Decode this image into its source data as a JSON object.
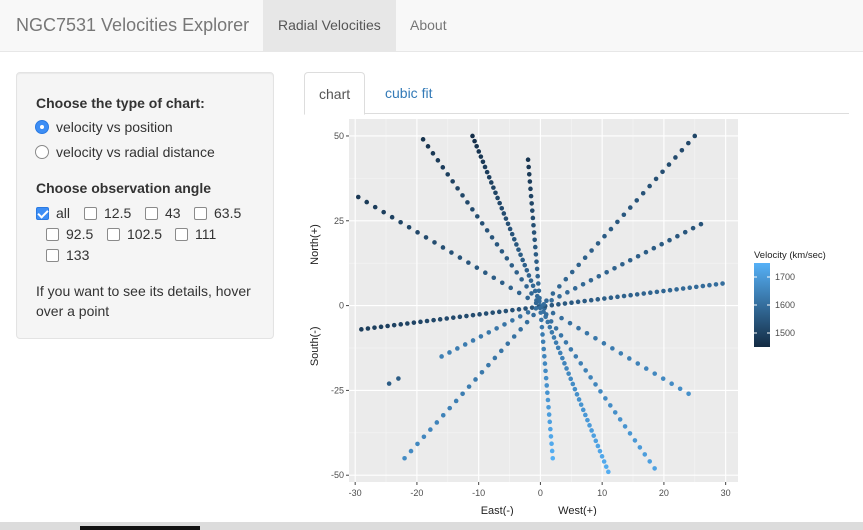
{
  "app": {
    "title": "NGC7531 Velocities Explorer"
  },
  "nav": {
    "items": [
      {
        "label": "Radial Velocities",
        "active": true
      },
      {
        "label": "About",
        "active": false
      }
    ]
  },
  "sidebar": {
    "chart_type_label": "Choose the type of chart:",
    "chart_type_options": [
      {
        "label": "velocity vs position",
        "selected": true
      },
      {
        "label": "velocity vs radial distance",
        "selected": false
      }
    ],
    "angle_label": "Choose observation angle",
    "angle_options": [
      {
        "label": "all",
        "checked": true
      },
      {
        "label": "12.5",
        "checked": false
      },
      {
        "label": "43",
        "checked": false
      },
      {
        "label": "63.5",
        "checked": false
      },
      {
        "label": "92.5",
        "checked": false
      },
      {
        "label": "102.5",
        "checked": false
      },
      {
        "label": "111",
        "checked": false
      },
      {
        "label": "133",
        "checked": false
      }
    ],
    "help_text": "If you want to see its details, hover over a point"
  },
  "tabs": [
    {
      "label": "chart",
      "active": true
    },
    {
      "label": "cubic fit",
      "active": false
    }
  ],
  "chart_data": {
    "type": "scatter",
    "title": "",
    "xlabel_left": "East(-)",
    "xlabel_right": "West(+)",
    "ylabel_top": "North(+)",
    "ylabel_bottom": "South(-)",
    "xlim": [
      -31,
      32
    ],
    "ylim": [
      -52,
      55
    ],
    "xticks": [
      -30,
      -20,
      -10,
      0,
      10,
      20,
      30
    ],
    "yticks": [
      -50,
      -25,
      0,
      25,
      50
    ],
    "grid": true,
    "panel_color": "#ebebeb",
    "legend": {
      "title": "Velocity (km/sec)",
      "ticks": [
        1500,
        1600,
        1700
      ],
      "range": [
        1450,
        1750
      ],
      "low_color": "#132b43",
      "high_color": "#56b1f7",
      "position": "right"
    },
    "series": [
      {
        "start": [
          -11,
          50
        ],
        "end": [
          11,
          -49
        ],
        "v_start": 1460,
        "v_end": 1740,
        "n": 66
      },
      {
        "start": [
          -19,
          49
        ],
        "end": [
          18.5,
          -48
        ],
        "v_start": 1470,
        "v_end": 1715,
        "n": 48
      },
      {
        "start": [
          -2,
          43
        ],
        "end": [
          2,
          -45
        ],
        "v_start": 1470,
        "v_end": 1745,
        "n": 42
      },
      {
        "start": [
          -29.5,
          32
        ],
        "end": [
          24,
          -26
        ],
        "v_start": 1480,
        "v_end": 1675,
        "n": 40
      },
      {
        "start": [
          -29,
          -7
        ],
        "end": [
          29.5,
          6.5
        ],
        "v_start": 1490,
        "v_end": 1600,
        "n": 56
      },
      {
        "start": [
          25,
          50
        ],
        "end": [
          -22,
          -45
        ],
        "v_start": 1510,
        "v_end": 1665,
        "n": 46
      },
      {
        "start": [
          26,
          24
        ],
        "end": [
          -16,
          -15
        ],
        "v_start": 1540,
        "v_end": 1640,
        "n": 34
      },
      {
        "start": [
          -24.5,
          -23
        ],
        "end": [
          -23,
          -21.5
        ],
        "v_start": 1560,
        "v_end": 1560,
        "n": 2
      }
    ]
  }
}
